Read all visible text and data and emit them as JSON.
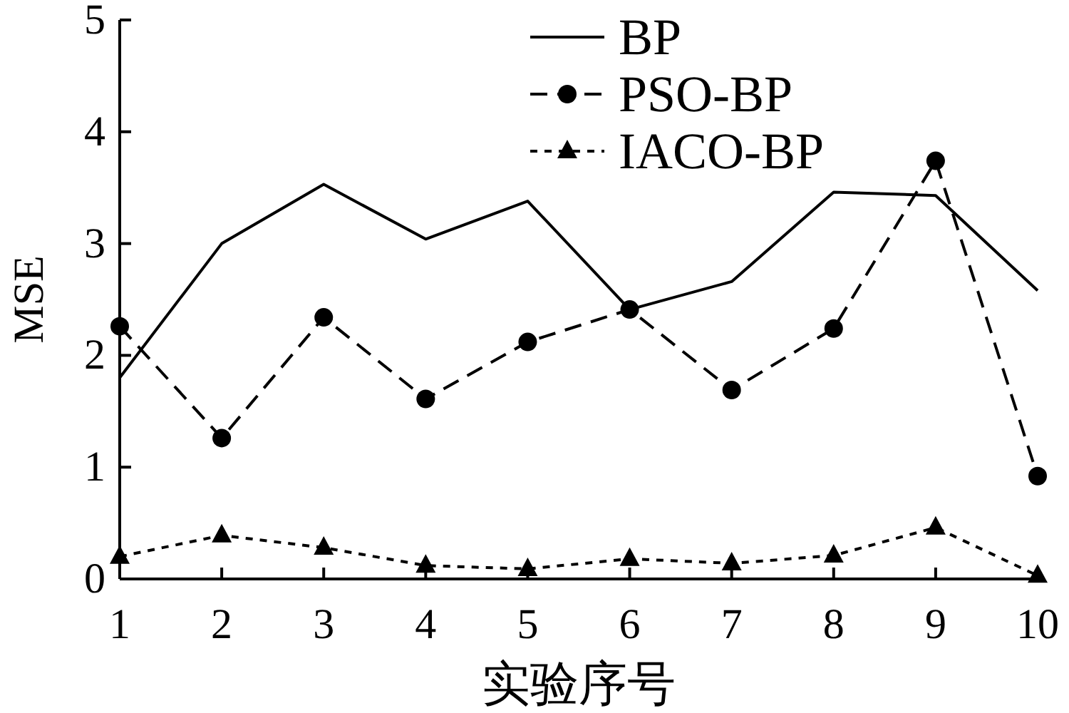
{
  "chart_data": {
    "type": "line",
    "xlabel": "实验序号",
    "ylabel": "MSE",
    "x": [
      1,
      2,
      3,
      4,
      5,
      6,
      7,
      8,
      9,
      10
    ],
    "xlim": [
      1,
      10
    ],
    "xticks": [
      1,
      2,
      3,
      4,
      5,
      6,
      7,
      8,
      9,
      10
    ],
    "ylim": [
      0,
      5
    ],
    "yticks": [
      0,
      1,
      2,
      3,
      4,
      5
    ],
    "series": [
      {
        "name": "BP",
        "color": "#000000",
        "line_style": "solid",
        "marker": "none",
        "values": [
          1.8,
          3.0,
          3.53,
          3.04,
          3.38,
          2.41,
          2.66,
          3.46,
          3.43,
          2.58
        ]
      },
      {
        "name": "PSO-BP",
        "color": "#000000",
        "line_style": "dashed",
        "marker": "circle",
        "values": [
          2.26,
          1.26,
          2.34,
          1.61,
          2.12,
          2.41,
          1.69,
          2.24,
          3.74,
          0.92
        ]
      },
      {
        "name": "IACO-BP",
        "color": "#000000",
        "line_style": "dotted",
        "marker": "triangle",
        "values": [
          0.2,
          0.39,
          0.28,
          0.12,
          0.09,
          0.18,
          0.14,
          0.21,
          0.46,
          0.03
        ]
      }
    ],
    "grid": false,
    "legend": "top right"
  }
}
